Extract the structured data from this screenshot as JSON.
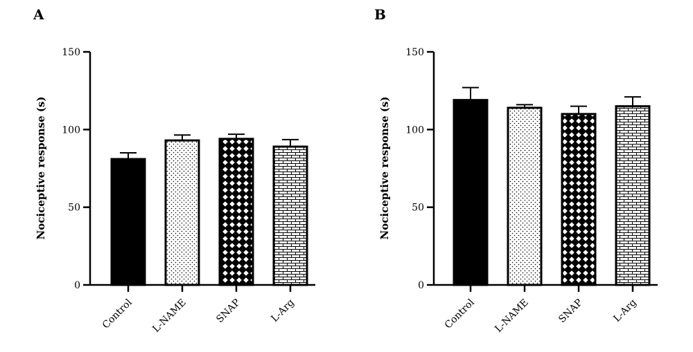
{
  "chart_data": [
    {
      "panel": "A",
      "type": "bar",
      "categories": [
        "Control",
        "L-NAME",
        "SNAP",
        "L-Arg"
      ],
      "values": [
        81,
        93,
        94,
        89
      ],
      "errors": [
        4,
        3.5,
        3,
        4.5
      ],
      "ylabel": "Nociceptive response (s)",
      "ylim": [
        0,
        150
      ],
      "yticks": [
        0,
        50,
        100,
        150
      ],
      "ytick_labels": [
        "0",
        "50",
        "100",
        "150"
      ],
      "patterns": [
        "solid",
        "dots",
        "diamond",
        "brick"
      ]
    },
    {
      "panel": "B",
      "type": "bar",
      "categories": [
        "Control",
        "L-NAME",
        "SNAP",
        "L-Arg"
      ],
      "values": [
        119,
        114,
        110,
        115
      ],
      "errors": [
        8,
        2,
        5,
        6
      ],
      "ylabel": "Nociceptive response (s)",
      "ylim": [
        0,
        150
      ],
      "yticks": [
        0,
        50,
        100,
        150
      ],
      "ytick_labels": [
        "0",
        "50",
        "100",
        "150"
      ],
      "patterns": [
        "solid",
        "dots",
        "diamond",
        "brick"
      ]
    }
  ],
  "colors": {
    "ink": "#000000",
    "background": "#ffffff"
  }
}
